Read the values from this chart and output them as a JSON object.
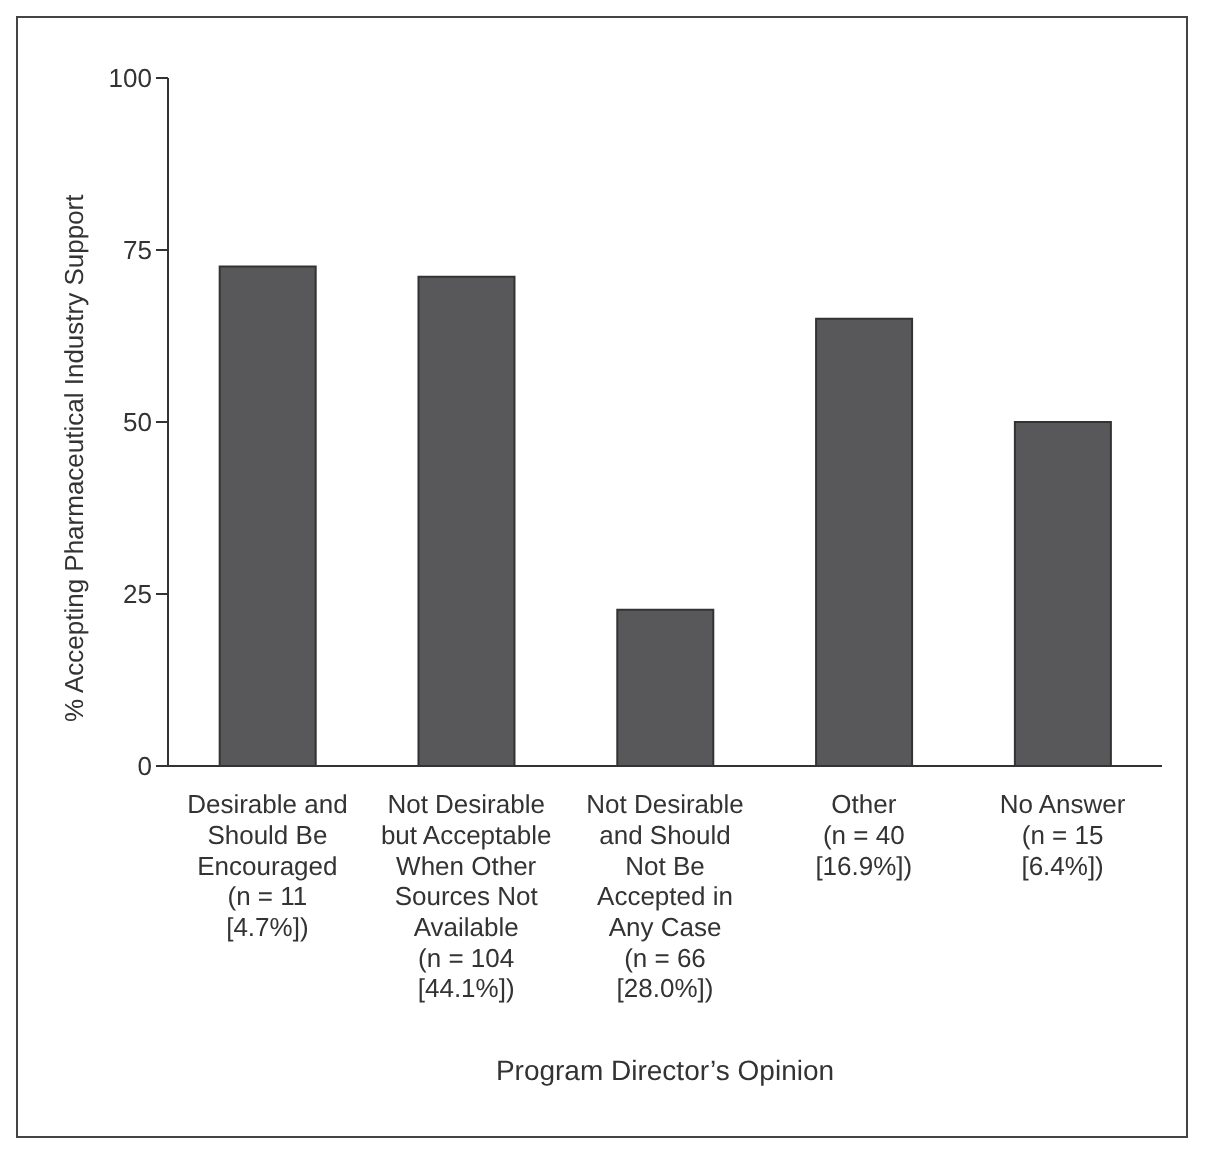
{
  "chart_data": {
    "type": "bar",
    "xlabel": "Program Director’s Opinion",
    "ylabel": "% Accepting Pharmaceutical Industry Support",
    "categories": [
      "Desirable and\nShould Be\nEncouraged\n(n = 11\n[4.7%])",
      "Not Desirable\nbut Acceptable\nWhen Other\nSources Not\nAvailable\n(n = 104\n[44.1%])",
      "Not Desirable\nand Should\nNot Be\nAccepted in\nAny Case\n(n = 66\n[28.0%])",
      "Other\n(n = 40\n[16.9%])",
      "No Answer\n(n = 15\n[6.4%])"
    ],
    "values": [
      72.6,
      71.1,
      22.7,
      65,
      50
    ],
    "color": "#58585a",
    "ylim": [
      0,
      100
    ],
    "yticks": [
      0,
      25,
      50,
      75,
      100
    ],
    "grid": false,
    "legend": false
  }
}
